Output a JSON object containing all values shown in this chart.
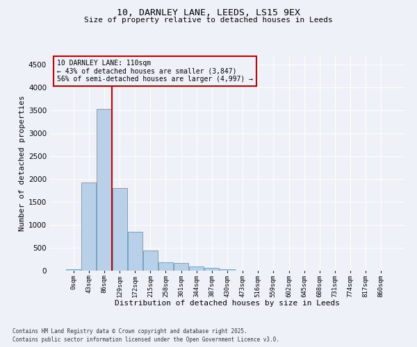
{
  "title1": "10, DARNLEY LANE, LEEDS, LS15 9EX",
  "title2": "Size of property relative to detached houses in Leeds",
  "xlabel": "Distribution of detached houses by size in Leeds",
  "ylabel": "Number of detached properties",
  "annotation_title": "10 DARNLEY LANE: 110sqm",
  "annotation_line2": "← 43% of detached houses are smaller (3,847)",
  "annotation_line3": "56% of semi-detached houses are larger (4,997) →",
  "footnote1": "Contains HM Land Registry data © Crown copyright and database right 2025.",
  "footnote2": "Contains public sector information licensed under the Open Government Licence v3.0.",
  "bar_labels": [
    "0sqm",
    "43sqm",
    "86sqm",
    "129sqm",
    "172sqm",
    "215sqm",
    "258sqm",
    "301sqm",
    "344sqm",
    "387sqm",
    "430sqm",
    "473sqm",
    "516sqm",
    "559sqm",
    "602sqm",
    "645sqm",
    "688sqm",
    "731sqm",
    "774sqm",
    "817sqm",
    "860sqm"
  ],
  "bar_values": [
    30,
    1930,
    3530,
    1800,
    850,
    440,
    175,
    165,
    90,
    55,
    35,
    5,
    3,
    2,
    1,
    0,
    0,
    0,
    0,
    0,
    0
  ],
  "bar_color": "#b8d0e8",
  "bar_edge_color": "#6699bb",
  "vline_x": 2.5,
  "vline_color": "#cc0000",
  "annotation_box_color": "#cc0000",
  "background_color": "#eef2f8",
  "ylim": [
    0,
    4700
  ],
  "yticks": [
    0,
    500,
    1000,
    1500,
    2000,
    2500,
    3000,
    3500,
    4000,
    4500
  ]
}
